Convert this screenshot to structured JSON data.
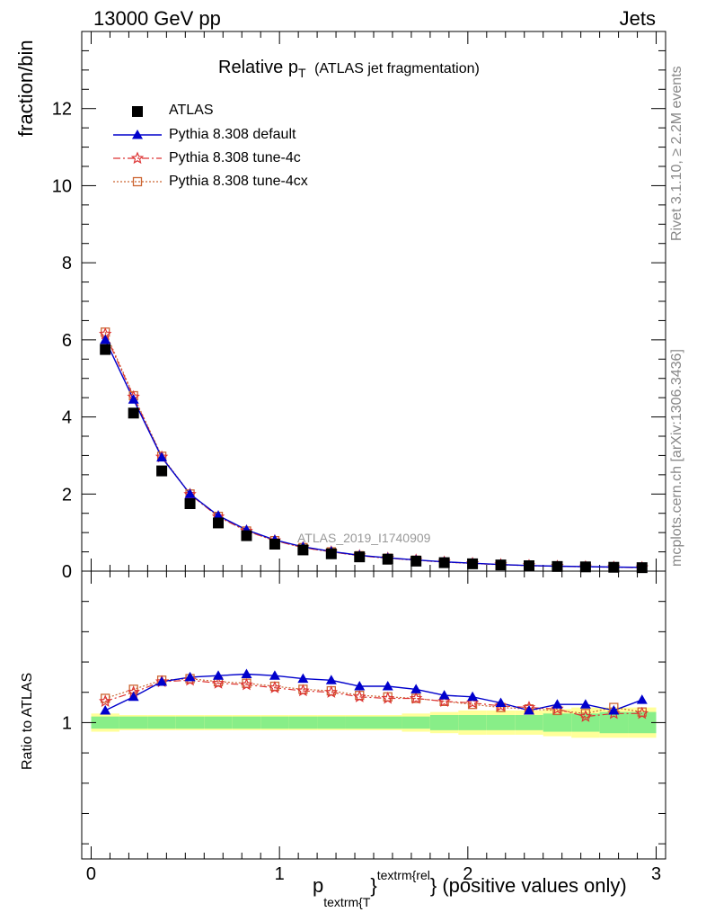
{
  "header": {
    "left": "13000 GeV pp",
    "right": "Jets"
  },
  "side": {
    "rivet": "Rivet 3.1.10, ≥ 2.2M events",
    "mcplots": "mcplots.cern.ch [arXiv:1306.3436]"
  },
  "title": {
    "main": "Relative p",
    "sub": "T",
    "rest": "(ATLAS jet fragmentation)"
  },
  "watermark": "ATLAS_2019_I1740909",
  "axes": {
    "ylabel_top": "fraction/bin",
    "ylabel_bottom": "Ratio to ATLAS",
    "xlabel_p": "p",
    "xlabel_sub": "textrm{T",
    "xlabel_brace": "}",
    "xlabel_sup": "textrm{rel",
    "xlabel_rest": "} (positive values only)"
  },
  "legend": [
    {
      "label": "ATLAS"
    },
    {
      "label": "Pythia 8.308 default"
    },
    {
      "label": "Pythia 8.308 tune-4c"
    },
    {
      "label": "Pythia 8.308 tune-4cx"
    }
  ],
  "chart_data": {
    "type": "line",
    "x": [
      0.075,
      0.225,
      0.375,
      0.525,
      0.675,
      0.825,
      0.975,
      1.125,
      1.275,
      1.425,
      1.575,
      1.725,
      1.875,
      2.025,
      2.175,
      2.325,
      2.475,
      2.625,
      2.775,
      2.925
    ],
    "xlim": [
      -0.05,
      3.05
    ],
    "ylim": [
      0,
      14
    ],
    "ratio_ylim": [
      0.55,
      1.5
    ],
    "xticks": [
      0,
      1,
      2,
      3
    ],
    "yticks": [
      0,
      2,
      4,
      6,
      8,
      10,
      12
    ],
    "ratio_yticks": [
      1
    ],
    "colors": {
      "data": "#000000",
      "default": "#0000cc",
      "tune4c": "#dd3333",
      "tune4cx": "#cc6633",
      "band_inner": "#88ee88",
      "band_outer": "#ffff99"
    },
    "series": [
      {
        "name": "ATLAS",
        "values": [
          5.75,
          4.1,
          2.6,
          1.75,
          1.25,
          0.92,
          0.7,
          0.55,
          0.45,
          0.37,
          0.31,
          0.26,
          0.22,
          0.19,
          0.16,
          0.14,
          0.12,
          0.11,
          0.1,
          0.09
        ]
      },
      {
        "name": "Pythia 8.308 default",
        "values": [
          6.0,
          4.45,
          2.95,
          2.0,
          1.44,
          1.07,
          0.81,
          0.63,
          0.51,
          0.41,
          0.345,
          0.29,
          0.24,
          0.205,
          0.17,
          0.145,
          0.128,
          0.116,
          0.104,
          0.098
        ]
      },
      {
        "name": "Pythia 8.308 tune-4c",
        "values": [
          6.15,
          4.52,
          2.96,
          1.99,
          1.41,
          1.04,
          0.79,
          0.61,
          0.5,
          0.4,
          0.335,
          0.285,
          0.235,
          0.2,
          0.167,
          0.143,
          0.125,
          0.112,
          0.101,
          0.092
        ]
      },
      {
        "name": "Pythia 8.308 tune-4cx",
        "values": [
          6.2,
          4.55,
          2.98,
          2.0,
          1.42,
          1.04,
          0.79,
          0.61,
          0.5,
          0.4,
          0.335,
          0.283,
          0.233,
          0.199,
          0.166,
          0.143,
          0.125,
          0.113,
          0.102,
          0.093
        ]
      }
    ],
    "ratio": [
      {
        "name": "Pythia 8.308 default",
        "values": [
          1.04,
          1.085,
          1.135,
          1.15,
          1.155,
          1.16,
          1.155,
          1.145,
          1.14,
          1.12,
          1.12,
          1.11,
          1.09,
          1.085,
          1.065,
          1.04,
          1.06,
          1.06,
          1.04,
          1.075
        ]
      },
      {
        "name": "Pythia 8.308 tune-4c",
        "values": [
          1.07,
          1.1,
          1.135,
          1.14,
          1.13,
          1.125,
          1.115,
          1.105,
          1.1,
          1.085,
          1.08,
          1.08,
          1.07,
          1.065,
          1.055,
          1.05,
          1.045,
          1.02,
          1.03,
          1.03
        ]
      },
      {
        "name": "Pythia 8.308 tune-4cx",
        "values": [
          1.08,
          1.11,
          1.14,
          1.145,
          1.135,
          1.13,
          1.12,
          1.11,
          1.105,
          1.09,
          1.085,
          1.08,
          1.07,
          1.06,
          1.05,
          1.045,
          1.04,
          1.03,
          1.05,
          1.035
        ]
      }
    ],
    "band": {
      "inner": [
        0.02,
        0.02,
        0.02,
        0.02,
        0.02,
        0.02,
        0.02,
        0.02,
        0.02,
        0.02,
        0.02,
        0.02,
        0.025,
        0.025,
        0.025,
        0.025,
        0.03,
        0.03,
        0.035,
        0.035
      ],
      "outer": [
        0.03,
        0.025,
        0.025,
        0.025,
        0.025,
        0.025,
        0.025,
        0.025,
        0.025,
        0.025,
        0.025,
        0.03,
        0.035,
        0.04,
        0.04,
        0.04,
        0.045,
        0.05,
        0.05,
        0.05
      ]
    }
  }
}
